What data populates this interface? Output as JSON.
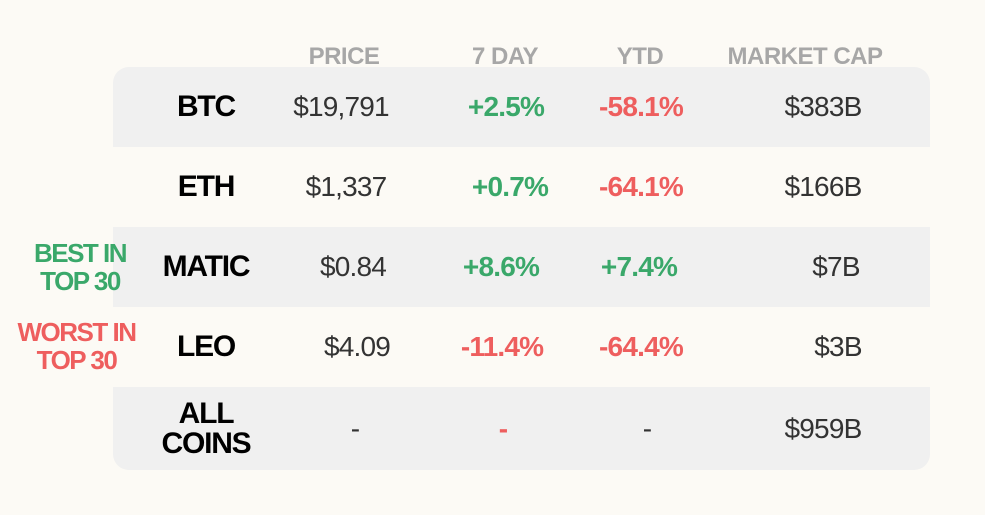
{
  "colors": {
    "background": "#fcfaf5",
    "row_shade": "#f0f0f0",
    "header": "#a7a7a7",
    "positive": "#3aa86a",
    "negative": "#ee5e5e",
    "neutral": "#333333",
    "coin": "#000000"
  },
  "headers": {
    "price": "PRICE",
    "seven_day": "7 DAY",
    "ytd": "YTD",
    "market_cap": "MARKET CAP"
  },
  "side_labels": {
    "best": {
      "line1": "BEST IN",
      "line2": "TOP 30"
    },
    "worst": {
      "line1": "WORST IN",
      "line2": "TOP 30"
    }
  },
  "rows": [
    {
      "coin": "BTC",
      "price": "$19,791",
      "seven_day": "+2.5%",
      "seven_day_color": "#3aa86a",
      "ytd": "-58.1%",
      "ytd_color": "#ee5e5e",
      "market_cap": "$383B"
    },
    {
      "coin": "ETH",
      "price": "$1,337",
      "seven_day": "+0.7%",
      "seven_day_color": "#3aa86a",
      "ytd": "-64.1%",
      "ytd_color": "#ee5e5e",
      "market_cap": "$166B"
    },
    {
      "coin": "MATIC",
      "price": "$0.84",
      "seven_day": "+8.6%",
      "seven_day_color": "#3aa86a",
      "ytd": "+7.4%",
      "ytd_color": "#3aa86a",
      "market_cap": "$7B"
    },
    {
      "coin": "LEO",
      "price": "$4.09",
      "seven_day": "-11.4%",
      "seven_day_color": "#ee5e5e",
      "ytd": "-64.4%",
      "ytd_color": "#ee5e5e",
      "market_cap": "$3B"
    },
    {
      "coin_line1": "ALL",
      "coin_line2": "COINS",
      "price": "-",
      "seven_day": "-",
      "seven_day_color": "#ee5e5e",
      "ytd": "-",
      "ytd_color": "#333333",
      "market_cap": "$959B"
    }
  ]
}
